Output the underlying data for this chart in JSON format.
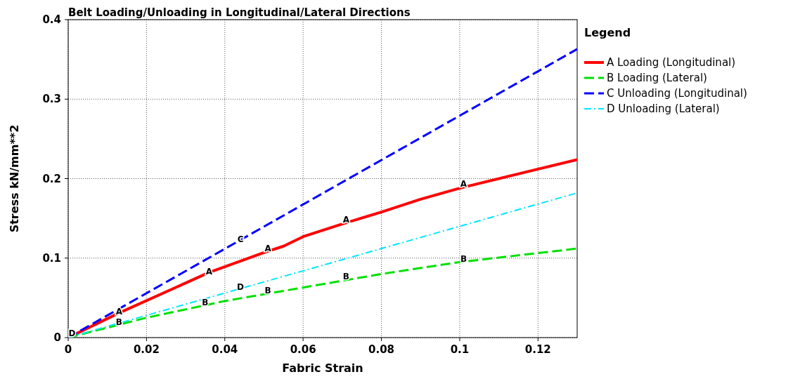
{
  "chart_data": {
    "type": "line",
    "title": "Belt Loading/Unloading in Longitudinal/Lateral Directions",
    "xlabel": "Fabric Strain",
    "ylabel": "Stress kN/mm**2",
    "legend_title": "Legend",
    "xlim": [
      0,
      0.13
    ],
    "ylim": [
      0,
      0.4
    ],
    "xticks": [
      0,
      0.02,
      0.04,
      0.06,
      0.08,
      0.1,
      0.12
    ],
    "yticks": [
      0,
      0.1,
      0.2,
      0.3,
      0.4
    ],
    "grid": true,
    "legend": "right",
    "marker": "none",
    "series": [
      {
        "name": "A Loading (Longitudinal)",
        "color": "#ff0000",
        "line_style": "solid",
        "x": [
          0,
          0.013,
          0.036,
          0.05,
          0.055,
          0.06,
          0.07,
          0.08,
          0.09,
          0.1,
          0.13
        ],
        "values": [
          0,
          0.031,
          0.082,
          0.107,
          0.115,
          0.127,
          0.143,
          0.158,
          0.174,
          0.188,
          0.224
        ]
      },
      {
        "name": "B Loading (Lateral)",
        "color": "#00e000",
        "line_style": "dashed",
        "x": [
          0,
          0.02,
          0.04,
          0.06,
          0.08,
          0.1,
          0.13
        ],
        "values": [
          0,
          0.025,
          0.046,
          0.063,
          0.08,
          0.095,
          0.112
        ]
      },
      {
        "name": "C Unloading (Longitudinal)",
        "color": "#0000ff",
        "line_style": "dashed",
        "x": [
          0,
          0.13
        ],
        "values": [
          0,
          0.363
        ]
      },
      {
        "name": "D Unloading (Lateral)",
        "color": "#00e5ff",
        "line_style": "dotted",
        "x": [
          0,
          0.13
        ],
        "values": [
          0,
          0.182
        ]
      }
    ],
    "annotations": [
      {
        "text": "A",
        "x": 0.013,
        "y": 0.033
      },
      {
        "text": "A",
        "x": 0.036,
        "y": 0.083
      },
      {
        "text": "A",
        "x": 0.051,
        "y": 0.112
      },
      {
        "text": "A",
        "x": 0.071,
        "y": 0.148
      },
      {
        "text": "A",
        "x": 0.101,
        "y": 0.193
      },
      {
        "text": "B",
        "x": 0.013,
        "y": 0.019
      },
      {
        "text": "B",
        "x": 0.035,
        "y": 0.044
      },
      {
        "text": "B",
        "x": 0.051,
        "y": 0.059
      },
      {
        "text": "B",
        "x": 0.071,
        "y": 0.077
      },
      {
        "text": "B",
        "x": 0.101,
        "y": 0.099
      },
      {
        "text": "C",
        "x": 0.044,
        "y": 0.124
      },
      {
        "text": "D",
        "x": 0.001,
        "y": 0.005
      },
      {
        "text": "D",
        "x": 0.044,
        "y": 0.064
      }
    ]
  }
}
